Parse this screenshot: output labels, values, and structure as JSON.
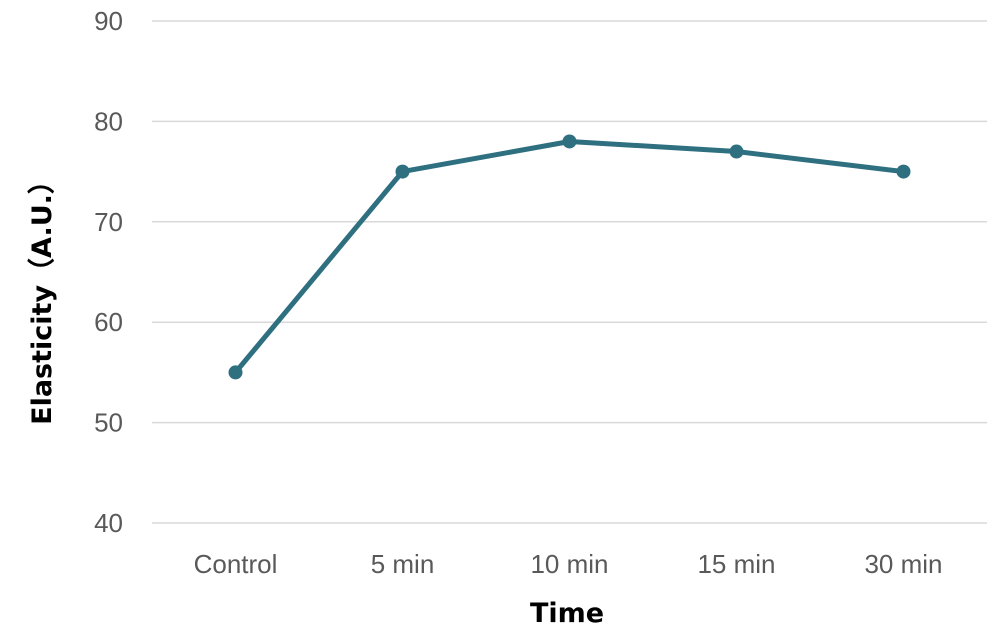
{
  "chart_data": {
    "type": "line",
    "title": "",
    "xlabel": "Time",
    "ylabel": "Elasticity（A.U.）",
    "categories": [
      "Control",
      "5 min",
      "10 min",
      "15 min",
      "30 min"
    ],
    "series": [
      {
        "values": [
          55,
          75,
          78,
          77,
          75
        ],
        "color": "#2e6f80"
      }
    ],
    "ylim": [
      40,
      90
    ],
    "yticks": [
      "40",
      "50",
      "60",
      "70",
      "80",
      "90"
    ],
    "grid": true,
    "marker": "circle"
  },
  "colors": {
    "series": "#2e6f80",
    "grid": "#d9d9d9",
    "tick_text": "#595959"
  }
}
